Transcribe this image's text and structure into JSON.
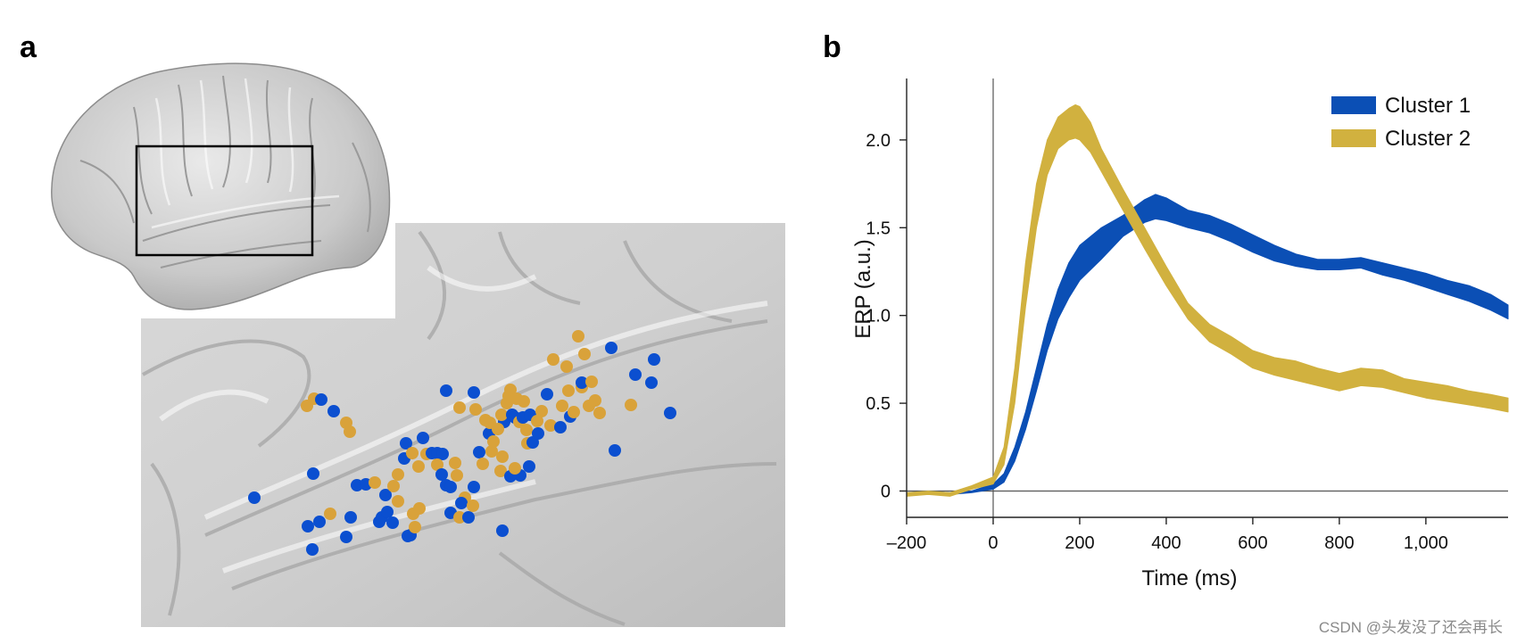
{
  "panels": {
    "a_label": "a",
    "b_label": "b"
  },
  "watermark": "CSDN @头发没了还会再长",
  "chart_data": {
    "type": "area",
    "xlabel": "Time (ms)",
    "ylabel": "ERP (a.u.)",
    "xlim": [
      -200,
      1190
    ],
    "ylim": [
      -0.15,
      2.35
    ],
    "xticks": [
      -200,
      0,
      200,
      400,
      600,
      800,
      1000
    ],
    "xtick_labels": [
      "–200",
      "0",
      "200",
      "400",
      "600",
      "800",
      "1,000"
    ],
    "yticks": [
      0,
      0.5,
      1.0,
      1.5,
      2.0
    ],
    "ytick_labels": [
      "0",
      "0.5",
      "1.0",
      "1.5",
      "2.0"
    ],
    "legend_position": "top-right",
    "series": [
      {
        "name": "Cluster 1",
        "color": "#0b4fb5",
        "x": [
          -200,
          -150,
          -100,
          -50,
          0,
          25,
          50,
          75,
          100,
          125,
          150,
          175,
          200,
          250,
          300,
          350,
          375,
          400,
          450,
          500,
          550,
          600,
          650,
          700,
          750,
          800,
          850,
          900,
          950,
          1000,
          1050,
          1100,
          1150,
          1190
        ],
        "upper": [
          -0.01,
          0.0,
          -0.01,
          0.0,
          0.04,
          0.1,
          0.25,
          0.45,
          0.7,
          0.95,
          1.15,
          1.3,
          1.4,
          1.5,
          1.57,
          1.66,
          1.69,
          1.67,
          1.6,
          1.57,
          1.52,
          1.46,
          1.4,
          1.35,
          1.32,
          1.32,
          1.33,
          1.3,
          1.27,
          1.24,
          1.2,
          1.17,
          1.12,
          1.06
        ],
        "lower": [
          -0.02,
          -0.01,
          -0.02,
          -0.01,
          0.01,
          0.05,
          0.17,
          0.35,
          0.57,
          0.8,
          0.98,
          1.1,
          1.2,
          1.32,
          1.45,
          1.53,
          1.55,
          1.54,
          1.5,
          1.47,
          1.42,
          1.36,
          1.31,
          1.28,
          1.26,
          1.26,
          1.27,
          1.23,
          1.2,
          1.16,
          1.12,
          1.08,
          1.03,
          0.98
        ]
      },
      {
        "name": "Cluster 2",
        "color": "#d1b13f",
        "x": [
          -200,
          -150,
          -100,
          -50,
          0,
          25,
          50,
          75,
          100,
          125,
          150,
          175,
          190,
          200,
          225,
          250,
          300,
          350,
          400,
          450,
          500,
          550,
          600,
          650,
          700,
          750,
          800,
          850,
          900,
          950,
          1000,
          1050,
          1100,
          1150,
          1190
        ],
        "upper": [
          -0.01,
          0.0,
          -0.01,
          0.03,
          0.08,
          0.25,
          0.7,
          1.3,
          1.75,
          2.0,
          2.13,
          2.18,
          2.2,
          2.19,
          2.1,
          1.95,
          1.72,
          1.5,
          1.28,
          1.07,
          0.95,
          0.88,
          0.8,
          0.76,
          0.74,
          0.7,
          0.67,
          0.7,
          0.69,
          0.64,
          0.62,
          0.6,
          0.57,
          0.55,
          0.53
        ],
        "lower": [
          -0.03,
          -0.02,
          -0.03,
          0.01,
          0.04,
          0.15,
          0.5,
          1.05,
          1.5,
          1.8,
          1.95,
          2.0,
          2.01,
          2.0,
          1.93,
          1.82,
          1.6,
          1.38,
          1.17,
          0.98,
          0.85,
          0.78,
          0.7,
          0.66,
          0.63,
          0.6,
          0.57,
          0.6,
          0.59,
          0.56,
          0.53,
          0.51,
          0.49,
          0.47,
          0.45
        ]
      }
    ]
  }
}
